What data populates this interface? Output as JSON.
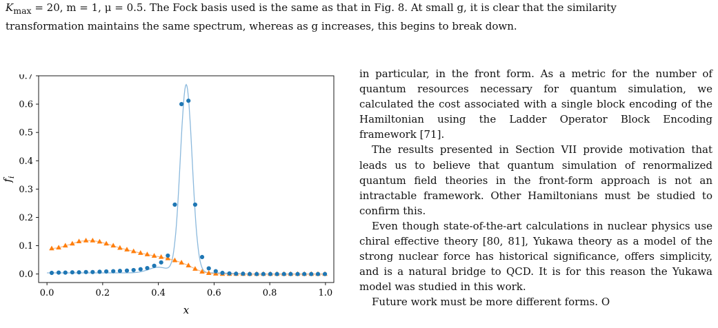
{
  "caption": {
    "line1_prefix": "K",
    "line1_sub": "max",
    "line1_rest": " = 20, m = 1, μ = 0.5. The Fock basis used is the same as that in Fig. 8. At small g, it is clear that the similarity",
    "line2": "transformation maintains the same spectrum, whereas as g increases, this begins to break down."
  },
  "body": {
    "p1": "in particular, in the front form. As a metric for the number of quantum resources necessary for quantum simulation, we calculated the cost associated with a single block encoding of the Hamiltonian using the Ladder Operator Block Encoding framework [71].",
    "p2": "The results presented in Section VII provide motivation that leads us to believe that quantum simulation of renormalized quantum field theories in the front-form approach is not an intractable framework. Other Hamiltonians must be studied to confirm this.",
    "p3": "Even though state-of-the-art calculations in nuclear physics use chiral effective theory [80, 81], Yukawa theory as a model of the strong nuclear force has historical significance, offers simplicity, and is a natural bridge to QCD. It is for this reason the Yukawa model was studied in this work.",
    "p4_partial": "Future work must be more different forms. O"
  },
  "colors": {
    "blue": "#1f77b4",
    "orange": "#ff7f0e",
    "blue_line": "#8ab8dc"
  },
  "chart_data": {
    "type": "line",
    "xlabel": "x",
    "ylabel": "f",
    "ylabel_sub": "i",
    "xlim": [
      -0.03,
      1.03
    ],
    "ylim": [
      -0.03,
      0.7
    ],
    "xticks": [
      0.0,
      0.2,
      0.4,
      0.6,
      0.8,
      1.0
    ],
    "xtick_labels": [
      "0.0",
      "0.2",
      "0.4",
      "0.6",
      "0.8",
      "1.0"
    ],
    "yticks": [
      0.0,
      0.1,
      0.2,
      0.3,
      0.4,
      0.5,
      0.6,
      0.7
    ],
    "ytick_labels": [
      "0.0",
      "0.1",
      "0.2",
      "0.3",
      "0.4",
      "0.5",
      "0.6",
      "0.7"
    ],
    "series": [
      {
        "color": "#1f77b4",
        "marker": "circle",
        "x": [
          0.017,
          0.042,
          0.066,
          0.091,
          0.115,
          0.14,
          0.164,
          0.189,
          0.213,
          0.238,
          0.262,
          0.287,
          0.311,
          0.336,
          0.36,
          0.385,
          0.41,
          0.434,
          0.459,
          0.483,
          0.508,
          0.532,
          0.557,
          0.581,
          0.606,
          0.63,
          0.655,
          0.679,
          0.704,
          0.728,
          0.753,
          0.777,
          0.802,
          0.826,
          0.851,
          0.875,
          0.9,
          0.924,
          0.949,
          0.973,
          0.998
        ],
        "y": [
          0.004,
          0.005,
          0.005,
          0.006,
          0.006,
          0.007,
          0.007,
          0.008,
          0.009,
          0.01,
          0.011,
          0.012,
          0.014,
          0.017,
          0.021,
          0.029,
          0.041,
          0.065,
          0.245,
          0.6,
          0.612,
          0.245,
          0.06,
          0.02,
          0.01,
          0.004,
          0.002,
          0.001,
          0.001,
          0.0,
          0.0,
          0.0,
          0.0,
          0.0,
          0.0,
          0.0,
          0.0,
          0.0,
          0.0,
          0.0,
          0.0
        ]
      },
      {
        "color": "#ff7f0e",
        "marker": "triangle",
        "x": [
          0.017,
          0.042,
          0.066,
          0.091,
          0.115,
          0.14,
          0.164,
          0.189,
          0.213,
          0.238,
          0.262,
          0.287,
          0.311,
          0.336,
          0.36,
          0.385,
          0.41,
          0.434,
          0.459,
          0.483,
          0.508,
          0.532,
          0.557,
          0.581,
          0.606,
          0.63,
          0.655,
          0.679,
          0.704,
          0.728,
          0.753,
          0.777,
          0.802,
          0.826,
          0.851,
          0.875,
          0.9,
          0.924,
          0.949,
          0.973,
          0.998
        ],
        "y": [
          0.09,
          0.093,
          0.1,
          0.107,
          0.115,
          0.118,
          0.118,
          0.114,
          0.107,
          0.1,
          0.092,
          0.086,
          0.08,
          0.074,
          0.069,
          0.064,
          0.06,
          0.055,
          0.048,
          0.04,
          0.03,
          0.018,
          0.008,
          0.003,
          0.001,
          0.0,
          0.0,
          0.0,
          0.0,
          0.0,
          0.0,
          0.0,
          0.0,
          0.0,
          0.0,
          0.0,
          0.0,
          0.0,
          0.0,
          0.0,
          0.0
        ]
      }
    ]
  }
}
